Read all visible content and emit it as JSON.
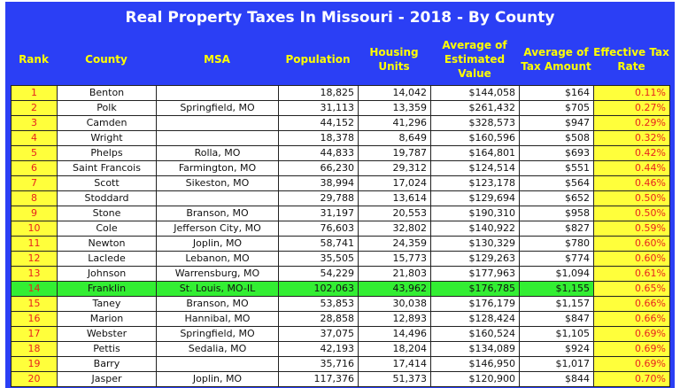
{
  "title": "Real Property Taxes In Missouri - 2018 - By County",
  "headers": {
    "rank": "Rank",
    "county": "County",
    "msa": "MSA",
    "population": "Population",
    "housing": [
      "Housing",
      "Units"
    ],
    "avg_value": [
      "Average of",
      "Estimated",
      "Value"
    ],
    "avg_tax": [
      "Average of",
      "Tax Amount"
    ],
    "rate": [
      "Effective Tax",
      "Rate"
    ]
  },
  "rows": [
    {
      "rank": "1",
      "county": "Benton",
      "msa": "",
      "population": "18,825",
      "housing": "14,042",
      "value": "$144,058",
      "tax": "$164",
      "rate": "0.11%"
    },
    {
      "rank": "2",
      "county": "Polk",
      "msa": "Springfield, MO",
      "population": "31,113",
      "housing": "13,359",
      "value": "$261,432",
      "tax": "$705",
      "rate": "0.27%"
    },
    {
      "rank": "3",
      "county": "Camden",
      "msa": "",
      "population": "44,152",
      "housing": "41,296",
      "value": "$328,573",
      "tax": "$947",
      "rate": "0.29%"
    },
    {
      "rank": "4",
      "county": "Wright",
      "msa": "",
      "population": "18,378",
      "housing": "8,649",
      "value": "$160,596",
      "tax": "$508",
      "rate": "0.32%"
    },
    {
      "rank": "5",
      "county": "Phelps",
      "msa": "Rolla, MO",
      "population": "44,833",
      "housing": "19,787",
      "value": "$164,801",
      "tax": "$693",
      "rate": "0.42%"
    },
    {
      "rank": "6",
      "county": "Saint Francois",
      "msa": "Farmington, MO",
      "population": "66,230",
      "housing": "29,312",
      "value": "$124,514",
      "tax": "$551",
      "rate": "0.44%"
    },
    {
      "rank": "7",
      "county": "Scott",
      "msa": "Sikeston, MO",
      "population": "38,994",
      "housing": "17,024",
      "value": "$123,178",
      "tax": "$564",
      "rate": "0.46%"
    },
    {
      "rank": "8",
      "county": "Stoddard",
      "msa": "",
      "population": "29,788",
      "housing": "13,614",
      "value": "$129,694",
      "tax": "$652",
      "rate": "0.50%"
    },
    {
      "rank": "9",
      "county": "Stone",
      "msa": "Branson, MO",
      "population": "31,197",
      "housing": "20,553",
      "value": "$190,310",
      "tax": "$958",
      "rate": "0.50%"
    },
    {
      "rank": "10",
      "county": "Cole",
      "msa": "Jefferson City, MO",
      "population": "76,603",
      "housing": "32,802",
      "value": "$140,922",
      "tax": "$827",
      "rate": "0.59%"
    },
    {
      "rank": "11",
      "county": "Newton",
      "msa": "Joplin, MO",
      "population": "58,741",
      "housing": "24,359",
      "value": "$130,329",
      "tax": "$780",
      "rate": "0.60%"
    },
    {
      "rank": "12",
      "county": "Laclede",
      "msa": "Lebanon, MO",
      "population": "35,505",
      "housing": "15,773",
      "value": "$129,263",
      "tax": "$774",
      "rate": "0.60%"
    },
    {
      "rank": "13",
      "county": "Johnson",
      "msa": "Warrensburg, MO",
      "population": "54,229",
      "housing": "21,803",
      "value": "$177,963",
      "tax": "$1,094",
      "rate": "0.61%"
    },
    {
      "rank": "14",
      "county": "Franklin",
      "msa": "St. Louis, MO-IL",
      "population": "102,063",
      "housing": "43,962",
      "value": "$176,785",
      "tax": "$1,155",
      "rate": "0.65%",
      "highlight": true
    },
    {
      "rank": "15",
      "county": "Taney",
      "msa": "Branson, MO",
      "population": "53,853",
      "housing": "30,038",
      "value": "$176,179",
      "tax": "$1,157",
      "rate": "0.66%"
    },
    {
      "rank": "16",
      "county": "Marion",
      "msa": "Hannibal, MO",
      "population": "28,858",
      "housing": "12,893",
      "value": "$128,424",
      "tax": "$847",
      "rate": "0.66%"
    },
    {
      "rank": "17",
      "county": "Webster",
      "msa": "Springfield, MO",
      "population": "37,075",
      "housing": "14,496",
      "value": "$160,524",
      "tax": "$1,105",
      "rate": "0.69%"
    },
    {
      "rank": "18",
      "county": "Pettis",
      "msa": "Sedalia, MO",
      "population": "42,193",
      "housing": "18,204",
      "value": "$134,089",
      "tax": "$924",
      "rate": "0.69%"
    },
    {
      "rank": "19",
      "county": "Barry",
      "msa": "",
      "population": "35,716",
      "housing": "17,414",
      "value": "$146,950",
      "tax": "$1,017",
      "rate": "0.69%"
    },
    {
      "rank": "20",
      "county": "Jasper",
      "msa": "Joplin, MO",
      "population": "117,376",
      "housing": "51,373",
      "value": "$120,900",
      "tax": "$844",
      "rate": "0.70%"
    }
  ]
}
